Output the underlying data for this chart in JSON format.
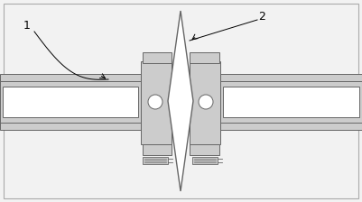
{
  "bg_color": "#f2f2f2",
  "line_color": "#999999",
  "dark_line": "#666666",
  "white_fill": "#ffffff",
  "gray_fill": "#cccccc",
  "med_gray": "#bbbbbb",
  "label1": "1",
  "label2": "2",
  "figsize": [
    4.01,
    2.24
  ],
  "dpi": 100
}
